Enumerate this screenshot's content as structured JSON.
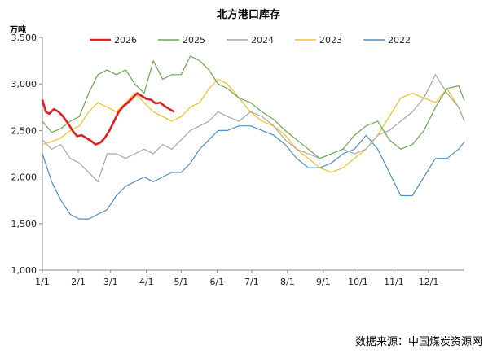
{
  "chart_data": {
    "type": "line",
    "title": "北方港口库存",
    "ylabel": "万吨",
    "ylim": [
      1000,
      3500
    ],
    "yticks": [
      "1,000",
      "1,500",
      "2,000",
      "2,500",
      "3,000",
      "3,500"
    ],
    "ytick_values": [
      1000,
      1500,
      2000,
      2500,
      3000,
      3500
    ],
    "x_tick_labels": [
      "1/1",
      "2/1",
      "3/1",
      "4/1",
      "5/1",
      "6/1",
      "7/1",
      "8/1",
      "9/1",
      "10/1",
      "11/1",
      "12/1"
    ],
    "x_tick_days": [
      0,
      31,
      59,
      90,
      120,
      151,
      181,
      212,
      243,
      273,
      304,
      334
    ],
    "x_range_days": [
      0,
      365
    ],
    "grid": false,
    "legend_position": "top",
    "source": "数据来源：中国煤炭资源网",
    "series": [
      {
        "name": "2026",
        "color": "#e02020",
        "x": [
          0,
          3,
          6,
          10,
          14,
          18,
          22,
          26,
          30,
          34,
          38,
          42,
          46,
          50,
          54,
          58,
          62,
          66,
          70,
          74,
          78,
          82,
          86,
          90,
          94,
          98,
          102,
          106,
          110,
          114
        ],
        "y": [
          2830,
          2700,
          2680,
          2730,
          2700,
          2650,
          2580,
          2500,
          2440,
          2450,
          2420,
          2390,
          2350,
          2370,
          2420,
          2500,
          2600,
          2700,
          2760,
          2800,
          2850,
          2900,
          2870,
          2840,
          2830,
          2790,
          2800,
          2760,
          2730,
          2700
        ]
      },
      {
        "name": "2025",
        "color": "#6aa84f",
        "x": [
          0,
          8,
          16,
          24,
          32,
          40,
          48,
          56,
          64,
          72,
          80,
          88,
          96,
          104,
          112,
          120,
          128,
          136,
          144,
          152,
          160,
          170,
          180,
          190,
          200,
          210,
          220,
          230,
          240,
          250,
          260,
          270,
          280,
          290,
          300,
          310,
          320,
          330,
          340,
          350,
          360,
          365
        ],
        "y": [
          2600,
          2480,
          2520,
          2600,
          2650,
          2900,
          3100,
          3150,
          3100,
          3150,
          3000,
          2900,
          3250,
          3050,
          3100,
          3100,
          3300,
          3250,
          3150,
          3000,
          2950,
          2850,
          2800,
          2700,
          2620,
          2500,
          2400,
          2300,
          2200,
          2250,
          2300,
          2450,
          2550,
          2600,
          2400,
          2300,
          2350,
          2500,
          2750,
          2950,
          2980,
          2820
        ]
      },
      {
        "name": "2024",
        "color": "#a6a6a6",
        "x": [
          0,
          8,
          16,
          24,
          32,
          40,
          48,
          56,
          64,
          72,
          80,
          88,
          96,
          104,
          112,
          120,
          128,
          136,
          144,
          152,
          160,
          170,
          180,
          190,
          200,
          210,
          220,
          230,
          240,
          250,
          260,
          270,
          280,
          290,
          300,
          310,
          320,
          330,
          340,
          350,
          360,
          365
        ],
        "y": [
          2400,
          2300,
          2350,
          2200,
          2150,
          2050,
          1950,
          2250,
          2250,
          2200,
          2250,
          2300,
          2250,
          2350,
          2300,
          2400,
          2500,
          2550,
          2600,
          2700,
          2650,
          2600,
          2700,
          2650,
          2550,
          2400,
          2300,
          2250,
          2200,
          2250,
          2300,
          2250,
          2300,
          2450,
          2500,
          2600,
          2700,
          2850,
          3100,
          2900,
          2750,
          2600
        ]
      },
      {
        "name": "2023",
        "color": "#f0c020",
        "x": [
          0,
          8,
          16,
          24,
          32,
          40,
          48,
          56,
          64,
          72,
          80,
          88,
          96,
          104,
          112,
          120,
          128,
          136,
          144,
          152,
          160,
          170,
          180,
          190,
          200,
          210,
          220,
          230,
          240,
          250,
          260,
          270,
          280,
          290,
          300,
          310,
          320,
          330,
          340,
          350,
          360,
          365
        ],
        "y": [
          2350,
          2380,
          2420,
          2500,
          2550,
          2700,
          2800,
          2750,
          2700,
          2800,
          2900,
          2800,
          2700,
          2650,
          2600,
          2650,
          2750,
          2800,
          2950,
          3050,
          3000,
          2850,
          2700,
          2600,
          2550,
          2450,
          2300,
          2200,
          2100,
          2050,
          2100,
          2200,
          2300,
          2450,
          2650,
          2850,
          2900,
          2850,
          2800,
          2950,
          2750,
          2600
        ]
      },
      {
        "name": "2022",
        "color": "#4f8fbf",
        "x": [
          0,
          8,
          16,
          24,
          32,
          40,
          48,
          56,
          64,
          72,
          80,
          88,
          96,
          104,
          112,
          120,
          128,
          136,
          144,
          152,
          160,
          170,
          180,
          190,
          200,
          210,
          220,
          230,
          240,
          250,
          260,
          270,
          280,
          290,
          300,
          310,
          320,
          330,
          340,
          350,
          360,
          365
        ],
        "y": [
          2250,
          1950,
          1750,
          1600,
          1550,
          1550,
          1600,
          1650,
          1800,
          1900,
          1950,
          2000,
          1950,
          2000,
          2050,
          2050,
          2150,
          2300,
          2400,
          2500,
          2500,
          2550,
          2550,
          2500,
          2450,
          2350,
          2200,
          2100,
          2100,
          2150,
          2250,
          2300,
          2450,
          2300,
          2050,
          1800,
          1800,
          2000,
          2200,
          2200,
          2300,
          2380
        ]
      }
    ]
  }
}
